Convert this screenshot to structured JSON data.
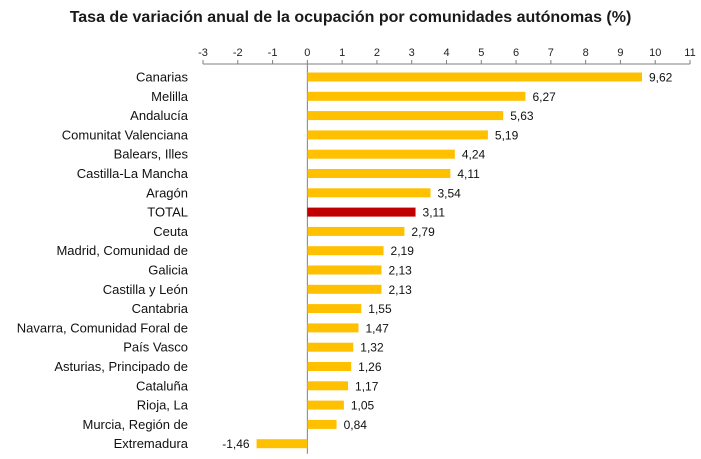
{
  "chart_data": {
    "type": "bar",
    "orientation": "horizontal",
    "title": "Tasa de variación anual de la ocupación por comunidades autónomas (%)",
    "xlim": [
      -3,
      11
    ],
    "x_ticks": [
      "-3",
      "-2",
      "-1",
      "0",
      "1",
      "2",
      "3",
      "4",
      "5",
      "6",
      "7",
      "8",
      "9",
      "10",
      "11"
    ],
    "x_axis_position": "top",
    "grid": false,
    "categories": [
      "Canarias",
      "Melilla",
      "Andalucía",
      "Comunitat Valenciana",
      "Balears, Illes",
      "Castilla-La Mancha",
      "Aragón",
      "TOTAL",
      "Ceuta",
      "Madrid, Comunidad de",
      "Galicia",
      "Castilla y León",
      "Cantabria",
      "Navarra, Comunidad Foral de",
      "País Vasco",
      "Asturias, Principado de",
      "Cataluña",
      "Rioja, La",
      "Murcia, Región de",
      "Extremadura"
    ],
    "values": [
      9.62,
      6.27,
      5.63,
      5.19,
      4.24,
      4.11,
      3.54,
      3.11,
      2.79,
      2.19,
      2.13,
      2.13,
      1.55,
      1.47,
      1.32,
      1.26,
      1.17,
      1.05,
      0.84,
      -1.46
    ],
    "value_labels": [
      "9,62",
      "6,27",
      "5,63",
      "5,19",
      "4,24",
      "4,11",
      "3,54",
      "3,11",
      "2,79",
      "2,19",
      "2,13",
      "2,13",
      "1,55",
      "1,47",
      "1,32",
      "1,26",
      "1,17",
      "1,05",
      "0,84",
      "-1,46"
    ],
    "highlight_category": "TOTAL",
    "colors": {
      "bar": "#FFC000",
      "highlight": "#C00000",
      "axis": "#7f7f7f"
    }
  }
}
